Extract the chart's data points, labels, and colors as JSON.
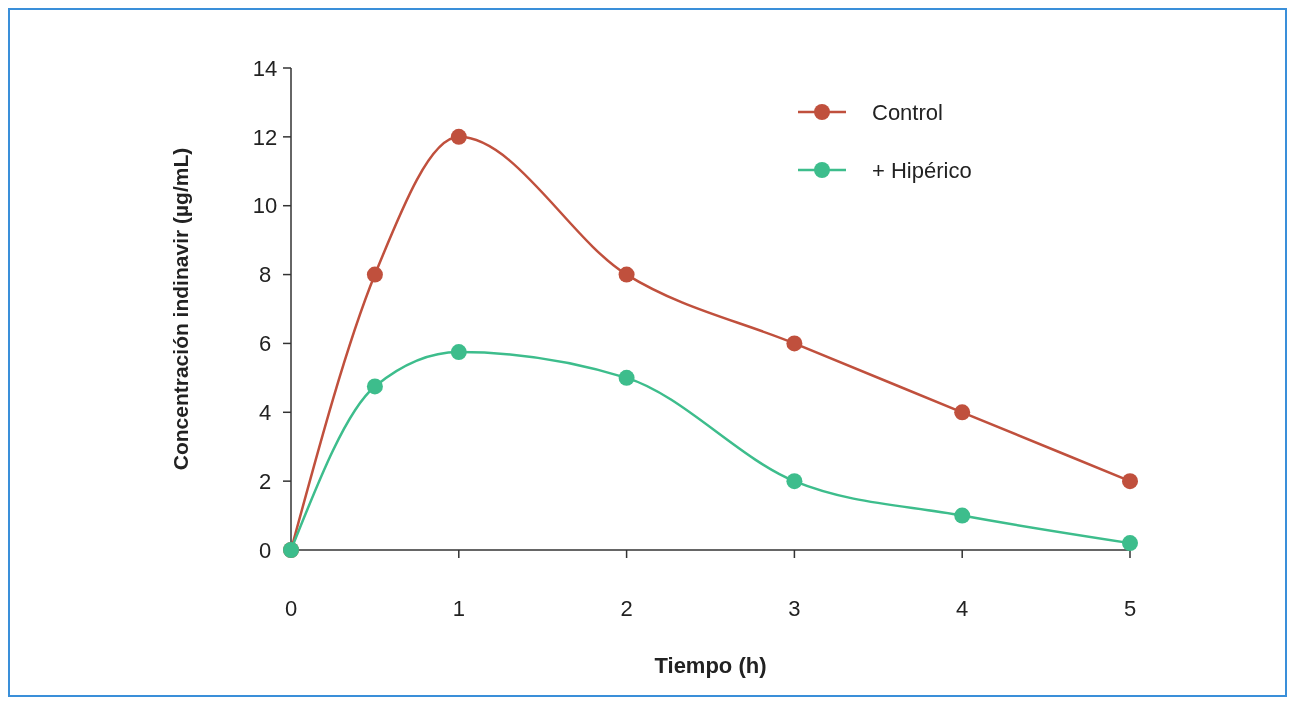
{
  "chart_data": {
    "type": "line",
    "xlabel": "Tiempo (h)",
    "ylabel": "Concentración indinavir (µg/mL)",
    "x": [
      0,
      0.5,
      1,
      2,
      3,
      4,
      5
    ],
    "series": [
      {
        "name": "Control",
        "color": "#c0503d",
        "values": [
          0,
          8,
          12,
          8,
          6,
          4,
          2
        ]
      },
      {
        "name": "+ Hipérico",
        "color": "#3dbd8c",
        "values": [
          0,
          4.75,
          5.75,
          5,
          2,
          1,
          0.2
        ]
      }
    ],
    "xlim": [
      0,
      5
    ],
    "xticks": [
      0,
      1,
      2,
      3,
      4,
      5
    ],
    "ylim": [
      0,
      14
    ],
    "yticks": [
      0,
      2,
      4,
      6,
      8,
      10,
      12,
      14
    ],
    "grid": false,
    "legend": "top right",
    "marker": "circle",
    "line_style": "solid"
  }
}
